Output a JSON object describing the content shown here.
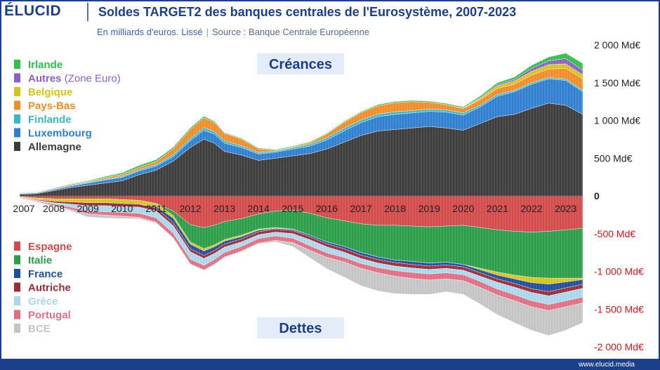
{
  "header": {
    "logo": "ÉLUCID",
    "title": "Soldes TARGET2 des banques centrales de l'Eurosystème, 2007-2023",
    "subtitle": "En milliards d'euros. Lissé",
    "separator": "|",
    "source": "Source : Banque Centrale Européenne"
  },
  "footer": {
    "url": "www.elucid.media"
  },
  "colors": {
    "background": "#ffffff",
    "frame": "#1c3f8c",
    "brand": "#1c3f8c",
    "positive_tick": "#222222",
    "negative_tick": "#d0191b",
    "section_label_bg": "#e3ecf8"
  },
  "chart_data": {
    "type": "area",
    "stacked": true,
    "title": "Soldes TARGET2 des banques centrales de l'Eurosystème, 2007-2023",
    "unit": "Md€",
    "x": [
      2007,
      2007.5,
      2008,
      2008.5,
      2009,
      2009.5,
      2010,
      2010.5,
      2011,
      2011.5,
      2012,
      2012.4,
      2012.7,
      2013,
      2013.5,
      2014,
      2014.5,
      2015,
      2015.5,
      2016,
      2016.5,
      2017,
      2017.5,
      2018,
      2018.5,
      2019,
      2019.5,
      2020,
      2020.5,
      2021,
      2021.5,
      2022,
      2022.5,
      2023,
      2023.5
    ],
    "x_ticks": [
      "2007",
      "2008",
      "2009",
      "2010",
      "2011",
      "2012",
      "2013",
      "2014",
      "2015",
      "2016",
      "2017",
      "2018",
      "2019",
      "2020",
      "2021",
      "2022",
      "2023"
    ],
    "ylim": [
      -2000,
      2000
    ],
    "y_ticks": [
      {
        "value": 2000,
        "label": "2 000 Md€"
      },
      {
        "value": 1500,
        "label": "1 500 Md€"
      },
      {
        "value": 1000,
        "label": "1 000 Md€"
      },
      {
        "value": 500,
        "label": "500 Md€"
      },
      {
        "value": 0,
        "label": "0"
      },
      {
        "value": -500,
        "label": "-500 Md€"
      },
      {
        "value": -1000,
        "label": "-1 000 Md€"
      },
      {
        "value": -1500,
        "label": "-1 500 Md€"
      },
      {
        "value": -2000,
        "label": "-2 000 Md€"
      }
    ],
    "section_labels": {
      "positive": "Créances",
      "negative": "Dettes"
    },
    "legend_position": "left",
    "positive_series": [
      {
        "name": "Allemagne",
        "color": "#3b3b3b",
        "values": [
          20,
          30,
          70,
          110,
          140,
          170,
          200,
          280,
          340,
          460,
          640,
          750,
          700,
          590,
          540,
          470,
          500,
          530,
          560,
          620,
          710,
          800,
          860,
          880,
          900,
          920,
          900,
          870,
          960,
          1050,
          1080,
          1160,
          1230,
          1200,
          1080
        ]
      },
      {
        "name": "Luxembourg",
        "color": "#2e7fd0",
        "values": [
          10,
          10,
          15,
          20,
          30,
          40,
          45,
          50,
          55,
          60,
          90,
          120,
          120,
          110,
          100,
          85,
          80,
          90,
          100,
          120,
          150,
          170,
          190,
          200,
          200,
          200,
          210,
          200,
          220,
          270,
          300,
          320,
          320,
          330,
          300
        ]
      },
      {
        "name": "Finlande",
        "color": "#3bb8c0",
        "values": [
          5,
          5,
          8,
          10,
          10,
          12,
          15,
          20,
          20,
          25,
          30,
          35,
          35,
          30,
          25,
          20,
          15,
          20,
          25,
          30,
          35,
          35,
          35,
          35,
          30,
          30,
          30,
          30,
          25,
          25,
          20,
          20,
          20,
          20,
          20
        ]
      },
      {
        "name": "Pays-Bas",
        "color": "#f28c28",
        "values": [
          5,
          5,
          10,
          15,
          10,
          20,
          25,
          30,
          40,
          80,
          120,
          130,
          120,
          100,
          90,
          50,
          10,
          10,
          20,
          50,
          80,
          100,
          110,
          120,
          120,
          90,
          70,
          60,
          70,
          80,
          80,
          100,
          110,
          140,
          150
        ]
      },
      {
        "name": "Belgique",
        "color": "#d4c41a",
        "values": [
          0,
          0,
          0,
          0,
          0,
          0,
          0,
          0,
          0,
          0,
          0,
          0,
          0,
          0,
          0,
          0,
          0,
          0,
          0,
          0,
          0,
          0,
          0,
          0,
          0,
          0,
          0,
          0,
          20,
          35,
          45,
          50,
          60,
          60,
          55
        ]
      },
      {
        "name": "Autres (Zone Euro)",
        "color": "#8b5fc7",
        "values": [
          0,
          0,
          0,
          0,
          0,
          0,
          0,
          0,
          0,
          0,
          0,
          0,
          0,
          0,
          0,
          0,
          0,
          0,
          0,
          0,
          0,
          0,
          0,
          0,
          0,
          0,
          0,
          5,
          10,
          15,
          20,
          40,
          50,
          70,
          60
        ]
      },
      {
        "name": "Irlande",
        "color": "#2fbf4a",
        "values": [
          5,
          5,
          5,
          5,
          10,
          15,
          20,
          25,
          25,
          20,
          20,
          20,
          15,
          10,
          10,
          10,
          10,
          10,
          10,
          10,
          10,
          10,
          15,
          15,
          15,
          15,
          15,
          15,
          20,
          25,
          30,
          40,
          50,
          70,
          90
        ]
      }
    ],
    "negative_series": [
      {
        "name": "Espagne",
        "color": "#d24a4a",
        "values": [
          -10,
          -30,
          -40,
          -40,
          -40,
          -40,
          -50,
          -60,
          -100,
          -200,
          -380,
          -420,
          -390,
          -340,
          -300,
          -240,
          -200,
          -190,
          -230,
          -290,
          -330,
          -370,
          -390,
          -390,
          -400,
          -410,
          -400,
          -390,
          -420,
          -450,
          -470,
          -480,
          -470,
          -450,
          -430
        ]
      },
      {
        "name": "Italie",
        "color": "#2a9d49",
        "values": [
          0,
          0,
          0,
          0,
          0,
          0,
          0,
          0,
          0,
          -60,
          -230,
          -280,
          -260,
          -240,
          -220,
          -200,
          -220,
          -250,
          -290,
          -320,
          -340,
          -380,
          -420,
          -460,
          -470,
          -480,
          -480,
          -520,
          -540,
          -560,
          -580,
          -600,
          -620,
          -640,
          -660
        ]
      },
      {
        "name": "Belgique",
        "color": "#d4c41a",
        "values": [
          -10,
          -20,
          -30,
          -40,
          -50,
          -50,
          -50,
          -50,
          -40,
          -35,
          -30,
          -30,
          -25,
          -20,
          -20,
          -15,
          -10,
          -5,
          0,
          0,
          0,
          0,
          0,
          0,
          0,
          0,
          0,
          0,
          -20,
          -40,
          -50,
          -70,
          -80,
          -50,
          -20
        ]
      },
      {
        "name": "France",
        "color": "#1f4d9e",
        "values": [
          0,
          0,
          0,
          0,
          0,
          0,
          0,
          0,
          -20,
          -60,
          -60,
          -60,
          -50,
          -40,
          -30,
          -20,
          -10,
          -15,
          -20,
          -25,
          -30,
          -35,
          -35,
          -35,
          -40,
          -40,
          -35,
          -30,
          -40,
          -50,
          -60,
          -80,
          -100,
          -80,
          -60
        ]
      },
      {
        "name": "Autriche",
        "color": "#9a2a35",
        "values": [
          -5,
          -10,
          -20,
          -30,
          -40,
          -40,
          -40,
          -40,
          -40,
          -40,
          -40,
          -40,
          -40,
          -40,
          -40,
          -40,
          -40,
          -40,
          -40,
          -40,
          -45,
          -45,
          -45,
          -45,
          -45,
          -45,
          -45,
          -45,
          -45,
          -45,
          -50,
          -50,
          -55,
          -55,
          -55
        ]
      },
      {
        "name": "Grèce",
        "color": "#a9d7ec",
        "values": [
          -5,
          -10,
          -20,
          -40,
          -70,
          -80,
          -80,
          -80,
          -90,
          -100,
          -100,
          -90,
          -80,
          -70,
          -60,
          -50,
          -50,
          -60,
          -80,
          -80,
          -70,
          -65,
          -60,
          -60,
          -60,
          -60,
          -60,
          -60,
          -70,
          -90,
          -100,
          -110,
          -115,
          -115,
          -115
        ]
      },
      {
        "name": "Portugal",
        "color": "#e06e82",
        "values": [
          -5,
          -10,
          -20,
          -30,
          -40,
          -45,
          -50,
          -55,
          -60,
          -60,
          -60,
          -60,
          -60,
          -60,
          -60,
          -60,
          -60,
          -60,
          -60,
          -60,
          -60,
          -65,
          -70,
          -75,
          -80,
          -80,
          -80,
          -80,
          -80,
          -80,
          -80,
          -80,
          -80,
          -80,
          -80
        ]
      },
      {
        "name": "BCE",
        "color": "#c4c4c4",
        "values": [
          0,
          0,
          0,
          -20,
          -40,
          -40,
          -30,
          -20,
          -10,
          -10,
          -10,
          -10,
          -10,
          -10,
          -10,
          -10,
          -20,
          -50,
          -100,
          -150,
          -200,
          -230,
          -240,
          -230,
          -210,
          -190,
          -170,
          -180,
          -220,
          -260,
          -290,
          -310,
          -330,
          -310,
          -260
        ]
      }
    ],
    "bottom_legend": [
      "Espagne",
      "Italie",
      "France",
      "Autriche",
      "Grèce",
      "Portugal",
      "BCE"
    ],
    "bottom_legend_colors": [
      "#d24a4a",
      "#2a9d49",
      "#1f4d9e",
      "#9a2a35",
      "#a9d7ec",
      "#e06e82",
      "#c4c4c4"
    ],
    "top_legend": [
      "Irlande",
      "Autres (Zone Euro)",
      "Belgique",
      "Pays-Bas",
      "Finlande",
      "Luxembourg",
      "Allemagne"
    ],
    "top_legend_colors": [
      "#2fbf4a",
      "#8b5fc7",
      "#d4c41a",
      "#f28c28",
      "#3bb8c0",
      "#2e7fd0",
      "#3b3b3b"
    ]
  }
}
